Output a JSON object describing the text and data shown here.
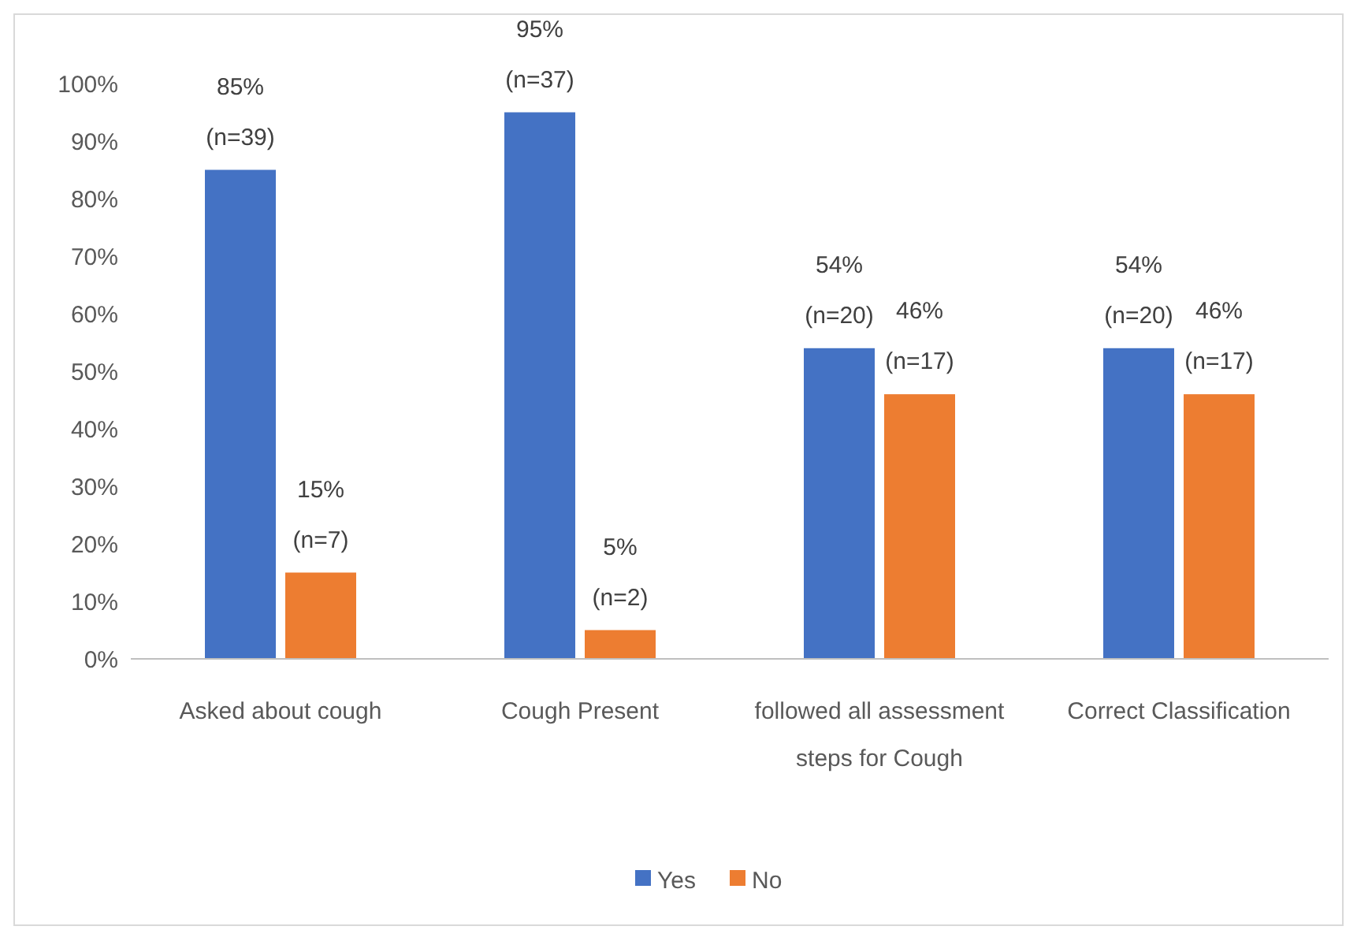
{
  "chart_data": {
    "type": "bar",
    "categories": [
      "Asked about cough",
      "Cough Present",
      "followed all assessment steps for Cough",
      "Correct Classification"
    ],
    "series": [
      {
        "name": "Yes",
        "color": "#4472c4",
        "values": [
          85,
          95,
          54,
          54
        ],
        "value_labels": [
          "85% (n=39)",
          "95% (n=37)",
          "54% (n=20)",
          "54% (n=20)"
        ]
      },
      {
        "name": "No",
        "color": "#ed7d31",
        "values": [
          15,
          5,
          46,
          46
        ],
        "value_labels": [
          "15% (n=7)",
          "5% (n=2)",
          "46% (n=17)",
          "46% (n=17)"
        ]
      }
    ],
    "ylim": [
      0,
      100
    ],
    "yticks": [
      {
        "value": 0,
        "label": "0%"
      },
      {
        "value": 10,
        "label": "10%"
      },
      {
        "value": 20,
        "label": "20%"
      },
      {
        "value": 30,
        "label": "30%"
      },
      {
        "value": 40,
        "label": "40%"
      },
      {
        "value": 50,
        "label": "50%"
      },
      {
        "value": 60,
        "label": "60%"
      },
      {
        "value": 70,
        "label": "70%"
      },
      {
        "value": 80,
        "label": "80%"
      },
      {
        "value": 90,
        "label": "90%"
      },
      {
        "value": 100,
        "label": "100%"
      }
    ],
    "grid": false,
    "legend": "bottom"
  }
}
